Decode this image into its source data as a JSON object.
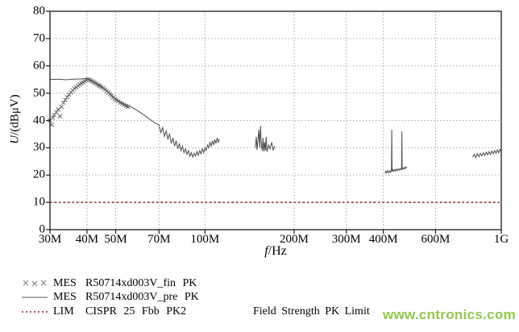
{
  "axes": {
    "y_var": "U",
    "y_rest": "/(dBμV)",
    "x_var": "f",
    "x_rest": "/Hz"
  },
  "chart_data": {
    "type": "line",
    "title": "",
    "xlabel": "f/Hz",
    "ylabel": "U/(dBμV)",
    "x_axis": {
      "scale": "log",
      "unit": "MHz",
      "min": 30,
      "max": 1000,
      "ticks": [
        {
          "f": 30,
          "label": "30M"
        },
        {
          "f": 40,
          "label": "40M"
        },
        {
          "f": 50,
          "label": "50M"
        },
        {
          "f": 70,
          "label": "70M"
        },
        {
          "f": 100,
          "label": "100M"
        },
        {
          "f": 200,
          "label": "200M"
        },
        {
          "f": 300,
          "label": "300M"
        },
        {
          "f": 400,
          "label": "400M"
        },
        {
          "f": 600,
          "label": "600M"
        },
        {
          "f": 1000,
          "label": "1G"
        }
      ]
    },
    "y_axis": {
      "min": 0,
      "max": 80,
      "tick_step": 10,
      "ticks": [
        {
          "v": 0,
          "label": "0"
        },
        {
          "v": 10,
          "label": "10"
        },
        {
          "v": 20,
          "label": "20"
        },
        {
          "v": 30,
          "label": "30"
        },
        {
          "v": 40,
          "label": "40"
        },
        {
          "v": 50,
          "label": "50"
        },
        {
          "v": 60,
          "label": "60"
        },
        {
          "v": 70,
          "label": "70"
        },
        {
          "v": 80,
          "label": "80"
        }
      ]
    },
    "grid": true,
    "legend_position": "bottom",
    "series": [
      {
        "id": "fin",
        "name": "MES R50714xd003V_fin PK",
        "type": "scatter",
        "marker": "x",
        "color": "#5a5a5a",
        "points": [
          [
            30,
            40
          ],
          [
            30.4,
            38.5
          ],
          [
            30.7,
            41
          ],
          [
            31,
            42
          ],
          [
            31.5,
            43
          ],
          [
            32,
            44
          ],
          [
            32.4,
            41.5
          ],
          [
            32.8,
            45
          ],
          [
            33.3,
            46.5
          ],
          [
            33.8,
            47.5
          ],
          [
            34.3,
            48.5
          ],
          [
            34.8,
            49.5
          ],
          [
            35.3,
            50.3
          ],
          [
            35.8,
            51
          ],
          [
            36.3,
            51.7
          ],
          [
            36.8,
            52.2
          ],
          [
            37.3,
            52.7
          ],
          [
            37.8,
            53.2
          ],
          [
            38.3,
            53.6
          ],
          [
            38.8,
            54
          ],
          [
            39.3,
            54.4
          ],
          [
            39.8,
            54.8
          ],
          [
            40.3,
            55.1
          ],
          [
            40.8,
            54.9
          ],
          [
            41.3,
            54.6
          ],
          [
            41.8,
            54.3
          ],
          [
            42.3,
            54
          ],
          [
            42.8,
            53.6
          ],
          [
            43.3,
            53.2
          ],
          [
            43.8,
            52.9
          ],
          [
            44.3,
            52.6
          ],
          [
            44.8,
            52.2
          ],
          [
            45.4,
            51.8
          ],
          [
            46,
            51.3
          ],
          [
            46.6,
            50.8
          ],
          [
            47.2,
            50.2
          ],
          [
            47.8,
            49.6
          ],
          [
            48.4,
            49
          ],
          [
            49,
            48.4
          ],
          [
            49.6,
            47.9
          ],
          [
            50.2,
            47.5
          ],
          [
            51,
            47
          ],
          [
            51.8,
            46.5
          ],
          [
            52.6,
            46.1
          ],
          [
            53.4,
            45.7
          ],
          [
            54.2,
            45.3
          ],
          [
            55,
            45
          ]
        ]
      },
      {
        "id": "pre",
        "name": "MES R50714xd003V_pre PK",
        "type": "line",
        "color": "#4a4a4a",
        "segments": [
          [
            [
              30,
              55
            ],
            [
              32,
              55.1
            ],
            [
              34,
              54.9
            ],
            [
              36,
              55.1
            ],
            [
              38,
              55.2
            ],
            [
              40,
              55.4
            ],
            [
              41,
              54.9
            ],
            [
              42,
              54.3
            ],
            [
              43,
              53.7
            ],
            [
              44,
              53.1
            ],
            [
              45,
              52.3
            ],
            [
              46,
              51.5
            ],
            [
              47,
              50.6
            ],
            [
              48,
              49.7
            ],
            [
              49,
              48.7
            ],
            [
              50,
              47.9
            ],
            [
              52,
              46.8
            ],
            [
              54,
              45.8
            ],
            [
              56,
              45.1
            ],
            [
              58,
              44.2
            ],
            [
              60,
              43.2
            ],
            [
              62,
              42.2
            ],
            [
              64,
              41.1
            ],
            [
              66,
              40
            ],
            [
              68,
              39
            ],
            [
              70,
              38.4
            ],
            [
              71,
              35.5
            ],
            [
              72,
              37.4
            ],
            [
              73,
              34.2
            ],
            [
              74,
              36.2
            ],
            [
              75,
              33.2
            ],
            [
              76,
              35
            ],
            [
              77,
              31.6
            ],
            [
              78,
              33.6
            ],
            [
              79,
              30.6
            ],
            [
              80,
              32.6
            ],
            [
              81,
              29.6
            ],
            [
              82,
              31.6
            ],
            [
              83,
              29
            ],
            [
              84,
              30.6
            ],
            [
              85,
              28.2
            ],
            [
              86,
              29.6
            ],
            [
              87,
              27.6
            ],
            [
              88,
              29
            ],
            [
              89,
              26.9
            ],
            [
              90,
              28.2
            ],
            [
              91,
              26.6
            ],
            [
              92,
              28
            ],
            [
              93,
              27
            ],
            [
              94,
              28.6
            ],
            [
              95,
              27.2
            ],
            [
              96,
              29
            ],
            [
              97,
              27.8
            ],
            [
              98,
              29.6
            ],
            [
              99,
              28.2
            ],
            [
              100,
              30
            ],
            [
              101,
              29
            ],
            [
              102,
              31
            ],
            [
              103,
              30
            ],
            [
              104,
              32
            ],
            [
              105,
              30.6
            ],
            [
              106,
              32.6
            ],
            [
              107,
              31
            ],
            [
              108,
              33
            ],
            [
              109,
              31.6
            ],
            [
              110,
              33.6
            ],
            [
              111,
              32
            ],
            [
              112,
              33.2
            ]
          ],
          [
            [
              148,
              30
            ],
            [
              149,
              34
            ],
            [
              150,
              29.2
            ],
            [
              151,
              33
            ],
            [
              152,
              36.6
            ],
            [
              153,
              30
            ],
            [
              154,
              38
            ],
            [
              155,
              31
            ],
            [
              156,
              29
            ],
            [
              157,
              33.6
            ],
            [
              158,
              28.6
            ],
            [
              159,
              32
            ],
            [
              160,
              29
            ],
            [
              161,
              34
            ],
            [
              162,
              28.6
            ],
            [
              164,
              31
            ],
            [
              166,
              29.6
            ],
            [
              168,
              32
            ],
            [
              170,
              29.2
            ],
            [
              172,
              30.6
            ]
          ],
          [
            [
              405,
              20.6
            ],
            [
              408,
              21.4
            ],
            [
              411,
              20.8
            ],
            [
              414,
              21.6
            ],
            [
              417,
              20.9
            ],
            [
              420,
              21.6
            ],
            [
              423,
              21
            ],
            [
              426,
              21.8
            ],
            [
              427,
              36.6
            ],
            [
              428,
              21.2
            ],
            [
              431,
              22
            ],
            [
              434,
              21.4
            ],
            [
              437,
              22
            ],
            [
              440,
              21.5
            ],
            [
              443,
              22.2
            ],
            [
              446,
              21.6
            ],
            [
              449,
              22.2
            ],
            [
              452,
              21.8
            ],
            [
              455,
              22.4
            ],
            [
              458,
              21.9
            ],
            [
              461,
              22.4
            ],
            [
              462,
              36
            ],
            [
              463,
              22
            ],
            [
              466,
              22.6
            ],
            [
              469,
              22.2
            ],
            [
              472,
              22.8
            ],
            [
              475,
              22.4
            ],
            [
              478,
              23
            ],
            [
              480,
              22.8
            ]
          ],
          [
            [
              800,
              26.6
            ],
            [
              810,
              27.6
            ],
            [
              820,
              26.4
            ],
            [
              830,
              27.9
            ],
            [
              840,
              26.7
            ],
            [
              850,
              28
            ],
            [
              860,
              27
            ],
            [
              870,
              28.2
            ],
            [
              880,
              27.2
            ],
            [
              890,
              28.4
            ],
            [
              900,
              27.4
            ],
            [
              910,
              28.6
            ],
            [
              920,
              27.5
            ],
            [
              930,
              28.8
            ],
            [
              940,
              27.8
            ],
            [
              950,
              29
            ],
            [
              960,
              28
            ],
            [
              970,
              29.2
            ],
            [
              980,
              28.2
            ],
            [
              990,
              29.3
            ],
            [
              1000,
              28.6
            ]
          ]
        ]
      },
      {
        "id": "limit",
        "name": "LIM CISPR 25 Fbb PK2 Field Strength PK Limit",
        "type": "limit",
        "value": 10,
        "color": "#8b2424"
      }
    ]
  },
  "legend": {
    "rows": [
      {
        "tag": "MES",
        "label": "R50714xd003V_fin PK"
      },
      {
        "tag": "MES",
        "label": "R50714xd003V_pre PK"
      },
      {
        "tag": "LIM",
        "label": "CISPR 25 Fbb PK2",
        "label2": "Field Strength PK Limit"
      }
    ]
  },
  "watermark": {
    "text": "www.cntronics.com",
    "color": "#8cc63e"
  }
}
